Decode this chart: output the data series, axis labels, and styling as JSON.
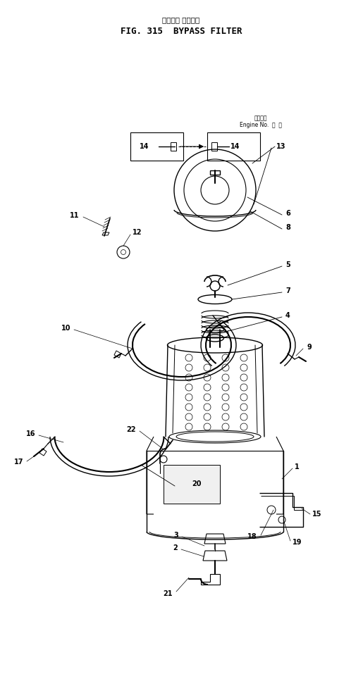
{
  "bg_color": "#ffffff",
  "line_color": "#000000",
  "title_jp": "バイパス フィルタ",
  "title_en": "FIG. 315  BYPASS FILTER"
}
